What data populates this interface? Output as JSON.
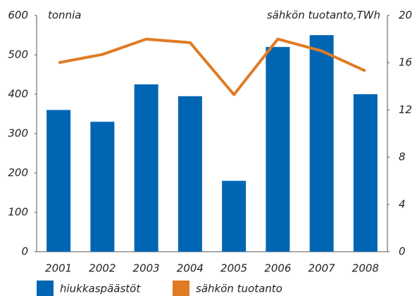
{
  "chart_data": {
    "type": "bar",
    "categories": [
      "2001",
      "2002",
      "2003",
      "2004",
      "2005",
      "2006",
      "2007",
      "2008"
    ],
    "y_label": "tonnia",
    "y2_label": "sähkön tuotanto,TWh",
    "series": [
      {
        "name": "hiukkaspäästöt",
        "color": "#0066b3",
        "type": "bar",
        "values": [
          360,
          330,
          425,
          395,
          180,
          520,
          550,
          400
        ]
      },
      {
        "name": "sähkön tuotanto",
        "color": "#e07b24",
        "type": "line",
        "axis": "y2",
        "values": [
          16.0,
          16.7,
          18.0,
          17.7,
          13.3,
          18.0,
          17.0,
          15.3
        ]
      }
    ],
    "ylim": [
      0,
      600
    ],
    "yticks": [
      0,
      100,
      200,
      300,
      400,
      500,
      600
    ],
    "y2lim": [
      0,
      20
    ],
    "y2ticks": [
      0,
      4,
      8,
      12,
      16,
      20
    ]
  }
}
